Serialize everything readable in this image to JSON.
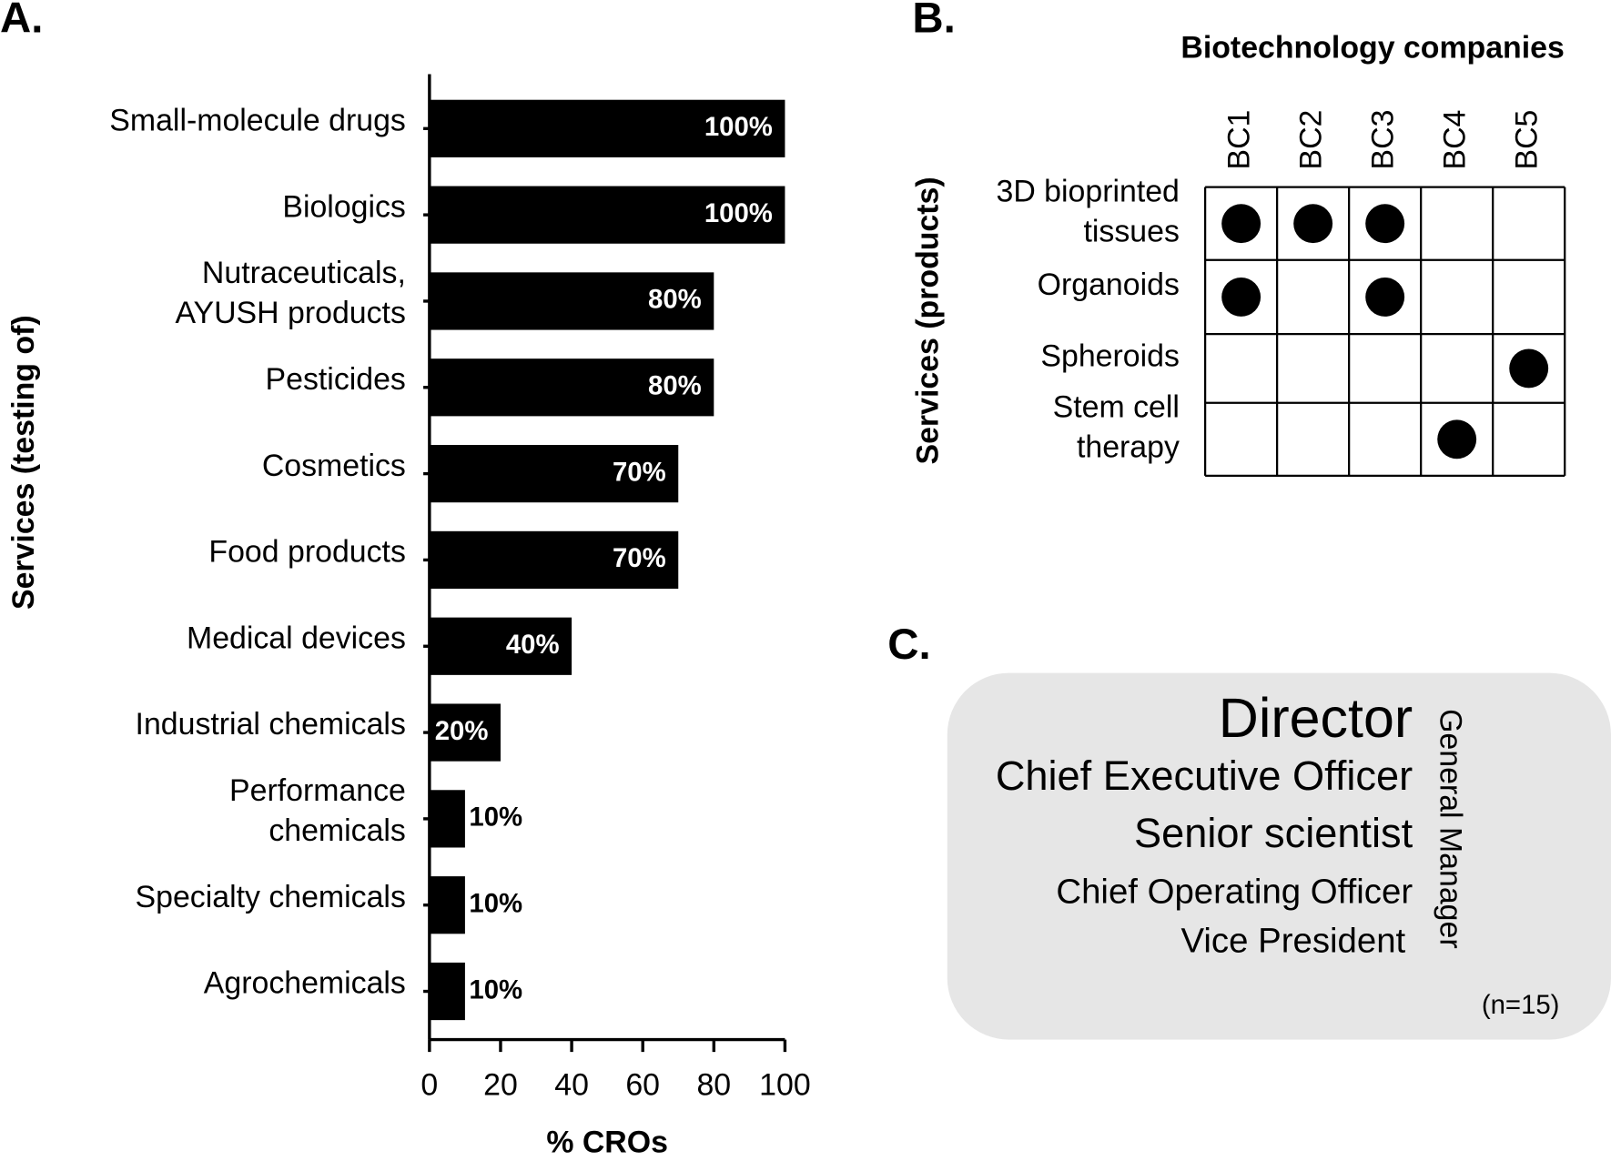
{
  "chart_data": [
    {
      "type": "bar",
      "panel_label": "A.",
      "orientation": "horizontal",
      "categories": [
        "Small-molecule drugs",
        "Biologics",
        "Nutraceuticals,\nAYUSH products",
        "Pesticides",
        "Cosmetics",
        "Food products",
        "Medical devices",
        "Industrial chemicals",
        "Performance\nchemicals",
        "Specialty chemicals",
        "Agrochemicals"
      ],
      "values": [
        100,
        100,
        80,
        80,
        70,
        70,
        40,
        20,
        10,
        10,
        10
      ],
      "value_labels": [
        "100%",
        "100%",
        "80%",
        "80%",
        "70%",
        "70%",
        "40%",
        "20%",
        "10%",
        "10%",
        "10%"
      ],
      "color": "#000000",
      "xlabel": "% CROs",
      "ylabel": "Services (testing of)",
      "xlim": [
        0,
        100
      ],
      "xticks": [
        0,
        20,
        40,
        60,
        80,
        100
      ]
    },
    {
      "type": "matrix",
      "panel_label": "B.",
      "title": "Biotechnology companies",
      "columns": [
        "BC1",
        "BC2",
        "BC3",
        "BC4",
        "BC5"
      ],
      "rows": [
        "3D bioprinted\ntissues",
        "Organoids",
        "Spheroids",
        "Stem cell\ntherapy"
      ],
      "ylabel": "Services (products)",
      "values": [
        [
          1,
          1,
          1,
          0,
          0
        ],
        [
          1,
          0,
          1,
          0,
          0
        ],
        [
          0,
          0,
          0,
          0,
          1
        ],
        [
          0,
          0,
          0,
          1,
          0
        ]
      ],
      "color": "#000000"
    },
    {
      "type": "wordcloud",
      "panel_label": "C.",
      "words": [
        "Director",
        "Chief Executive Officer",
        "Senior scientist",
        "Chief Operating Officer",
        "Vice President"
      ],
      "vertical_word": "General Manager",
      "note": "(n=15)"
    }
  ]
}
